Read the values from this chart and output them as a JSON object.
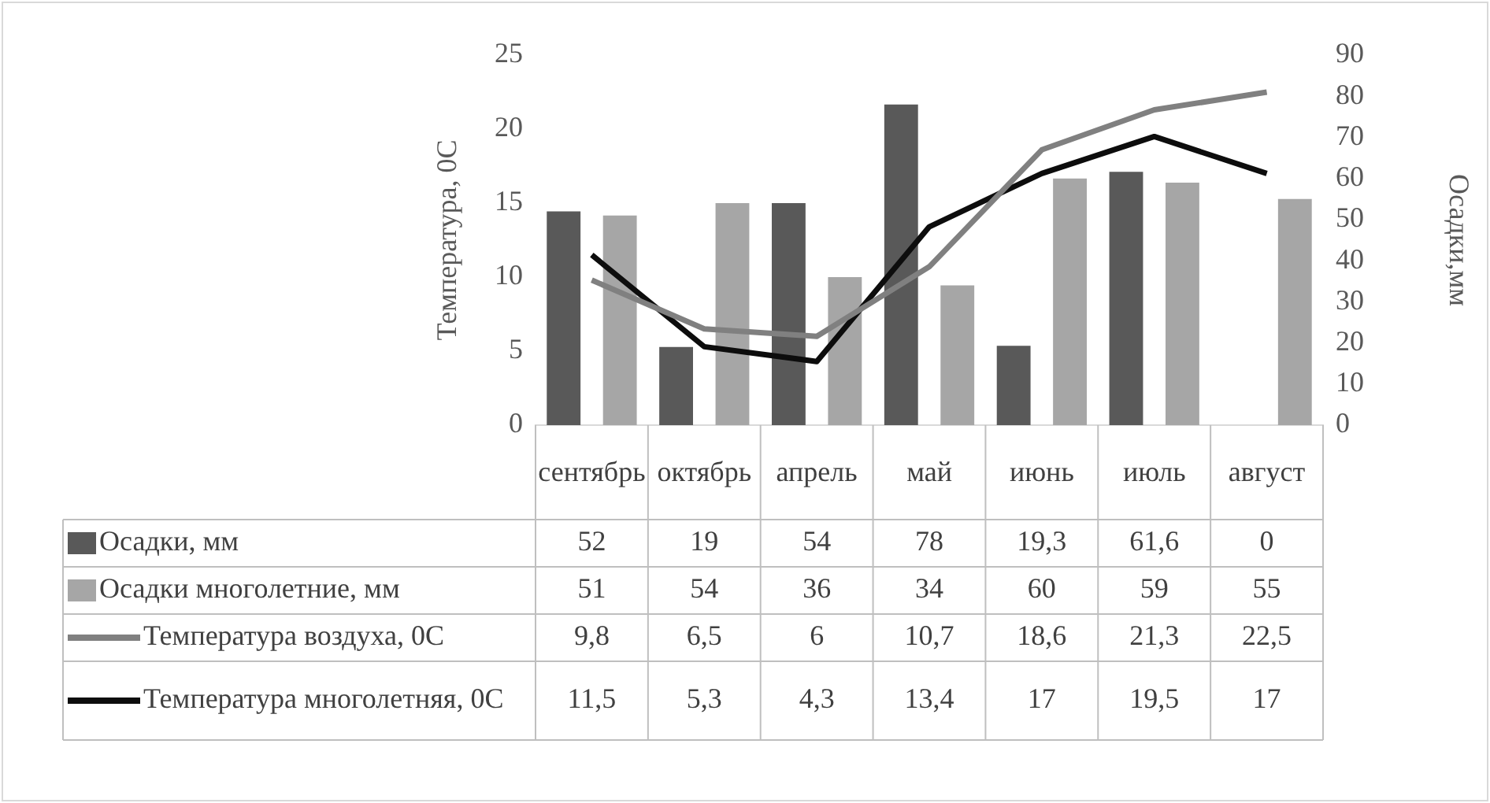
{
  "chart_data": {
    "type": "bar",
    "ylabel": "Температура, 0С",
    "y2label": "Осадки,мм",
    "categories": [
      "сентябрь",
      "октябрь",
      "апрель",
      "май",
      "июнь",
      "июль",
      "август"
    ],
    "series": [
      {
        "name": "Осадки, мм",
        "color": "#595959",
        "axis": "y2",
        "values": [
          52,
          19,
          54,
          78,
          19.3,
          61.6,
          0
        ],
        "value_labels": [
          "52",
          "19",
          "54",
          "78",
          "19,3",
          "61,6",
          "0"
        ]
      },
      {
        "name": "Осадки многолетние, мм",
        "color": "#a6a6a6",
        "axis": "y2",
        "values": [
          51,
          54,
          36,
          34,
          60,
          59,
          55
        ],
        "value_labels": [
          "51",
          "54",
          "36",
          "34",
          "60",
          "59",
          "55"
        ]
      },
      {
        "name": "Температура воздуха, 0С",
        "type": "line",
        "color": "#808080",
        "values": [
          9.8,
          6.5,
          6,
          10.7,
          18.6,
          21.3,
          22.5
        ],
        "value_labels": [
          "9,8",
          "6,5",
          "6",
          "10,7",
          "18,6",
          "21,3",
          "22,5"
        ]
      },
      {
        "name": "Температура многолетняя, 0С",
        "type": "line",
        "color": "#0d0d0d",
        "values": [
          11.5,
          5.3,
          4.3,
          13.4,
          17,
          19.5,
          17
        ],
        "value_labels": [
          "11,5",
          "5,3",
          "4,3",
          "13,4",
          "17",
          "19,5",
          "17"
        ]
      }
    ],
    "ylim": [
      0,
      25
    ],
    "yticks": [
      0,
      5,
      10,
      15,
      20,
      25
    ],
    "y2lim": [
      0,
      90
    ],
    "y2ticks": [
      0,
      10,
      20,
      30,
      40,
      50,
      60,
      70,
      80,
      90
    ],
    "grid": false,
    "legend": "bottom",
    "marker": "none"
  }
}
